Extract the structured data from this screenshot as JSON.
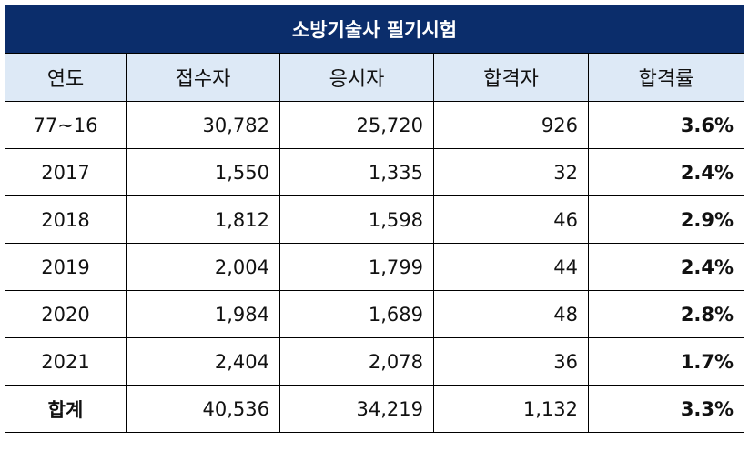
{
  "chart_data": {
    "type": "table",
    "title": "소방기술사 필기시험",
    "columns": [
      "연도",
      "접수자",
      "응시자",
      "합격자",
      "합격률"
    ],
    "rows": [
      [
        "77~16",
        "30,782",
        "25,720",
        "926",
        "3.6%"
      ],
      [
        "2017",
        "1,550",
        "1,335",
        "32",
        "2.4%"
      ],
      [
        "2018",
        "1,812",
        "1,598",
        "46",
        "2.9%"
      ],
      [
        "2019",
        "2,004",
        "1,799",
        "44",
        "2.4%"
      ],
      [
        "2020",
        "1,984",
        "1,689",
        "48",
        "2.8%"
      ],
      [
        "2021",
        "2,404",
        "2,078",
        "36",
        "1.7%"
      ],
      [
        "합계",
        "40,536",
        "34,219",
        "1,132",
        "3.3%"
      ]
    ]
  },
  "colors": {
    "title_background": "#0b2d6b",
    "title_text": "#ffffff",
    "header_background": "#dde9f6",
    "border": "#000000"
  }
}
